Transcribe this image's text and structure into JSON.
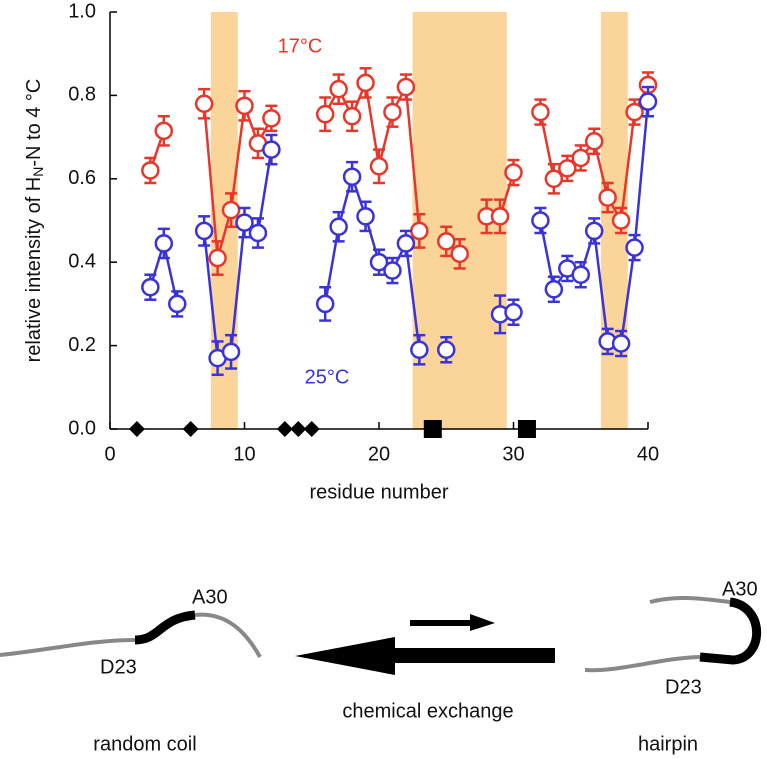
{
  "chart_data": {
    "type": "scatter",
    "ylabel": [
      "relative intensity of H",
      "N",
      "-N to 4 °C"
    ],
    "xlabel": "residue number",
    "annotations": [
      {
        "text": "17°C",
        "color": "#e8372a"
      },
      {
        "text": "25°C",
        "color": "#3a33d6"
      }
    ],
    "x": [
      1,
      2,
      3,
      4,
      5,
      6,
      7,
      8,
      9,
      10,
      11,
      12,
      13,
      14,
      15,
      16,
      17,
      18,
      19,
      20,
      21,
      22,
      23,
      24,
      25,
      26,
      27,
      28,
      29,
      30,
      31,
      32,
      33,
      34,
      35,
      36,
      37,
      38,
      39,
      40
    ],
    "series": [
      {
        "name": "17°C",
        "color": "#e8372a",
        "values": [
          null,
          null,
          0.62,
          0.715,
          null,
          null,
          0.78,
          0.41,
          0.525,
          0.775,
          0.685,
          0.745,
          null,
          null,
          null,
          0.755,
          0.815,
          0.75,
          0.83,
          0.63,
          0.76,
          0.82,
          0.475,
          null,
          0.45,
          0.42,
          null,
          0.51,
          0.51,
          0.615,
          null,
          0.76,
          0.6,
          0.625,
          0.65,
          0.69,
          0.555,
          0.5,
          0.76,
          0.825
        ],
        "errors": [
          null,
          null,
          0.03,
          0.035,
          null,
          null,
          0.035,
          0.04,
          0.04,
          0.035,
          0.035,
          0.03,
          null,
          null,
          null,
          0.04,
          0.035,
          0.035,
          0.035,
          0.04,
          0.035,
          0.03,
          0.04,
          null,
          0.035,
          0.035,
          null,
          0.04,
          0.04,
          0.03,
          null,
          0.03,
          0.035,
          0.03,
          0.03,
          0.03,
          0.035,
          0.03,
          0.03,
          0.03
        ]
      },
      {
        "name": "25°C",
        "color": "#3a33d6",
        "values": [
          null,
          null,
          0.34,
          0.445,
          0.3,
          null,
          0.475,
          0.17,
          0.185,
          0.495,
          0.47,
          0.67,
          null,
          null,
          null,
          0.3,
          0.485,
          0.605,
          0.51,
          0.4,
          0.38,
          0.445,
          0.19,
          null,
          0.19,
          null,
          null,
          null,
          0.275,
          0.28,
          null,
          0.5,
          0.335,
          0.385,
          0.37,
          0.475,
          0.21,
          0.205,
          0.435,
          0.785
        ],
        "errors": [
          null,
          null,
          0.03,
          0.035,
          0.03,
          null,
          0.035,
          0.04,
          0.04,
          0.035,
          0.035,
          0.035,
          null,
          null,
          null,
          0.04,
          0.035,
          0.035,
          0.035,
          0.03,
          0.03,
          0.03,
          0.035,
          null,
          0.03,
          null,
          null,
          null,
          0.045,
          0.03,
          null,
          0.03,
          0.03,
          0.03,
          0.03,
          0.03,
          0.03,
          0.03,
          0.03,
          0.035
        ]
      }
    ],
    "bands": [
      [
        7.5,
        9.5
      ],
      [
        22.5,
        29.5
      ],
      [
        36.5,
        38.5
      ]
    ],
    "band_color": "#fbd49a",
    "diamond_x": [
      2,
      6,
      13,
      14,
      15
    ],
    "square_x": [
      24,
      31
    ],
    "xlim": [
      0,
      40
    ],
    "xticks": [
      0,
      10,
      20,
      30,
      40
    ],
    "ylim": [
      0,
      1
    ],
    "yticks": [
      {
        "value": 0,
        "label": "0.0"
      },
      0.2,
      0.4,
      0.6,
      0.8,
      {
        "value": 1,
        "label": "1.0"
      }
    ]
  },
  "diagram": {
    "left_top": "A30",
    "left_bottom": "D23",
    "right_top": "A30",
    "right_bottom": "D23",
    "arrow_label": "chemical exchange",
    "left_caption": "random coil",
    "right_caption": "hairpin"
  }
}
